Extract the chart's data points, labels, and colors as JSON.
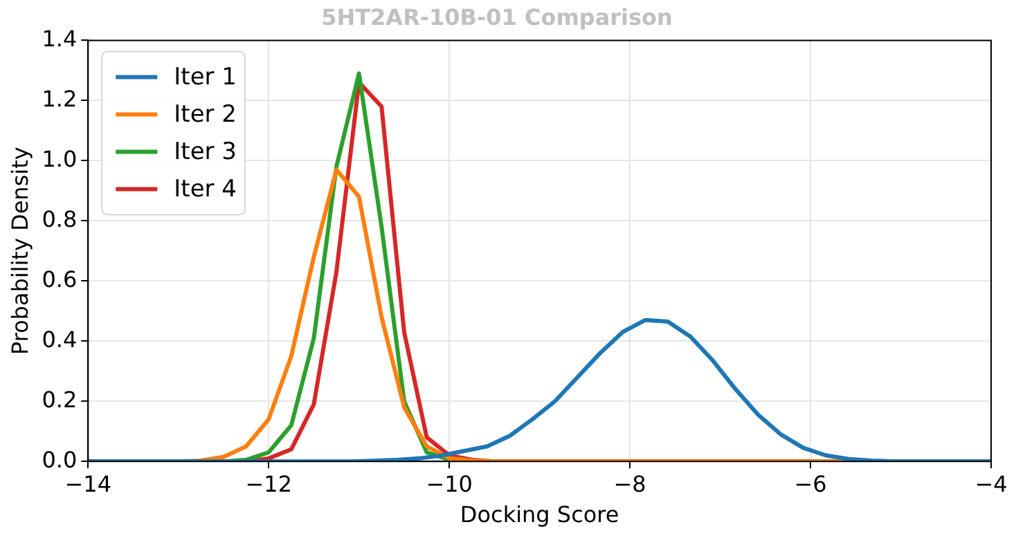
{
  "chart_data": {
    "type": "line",
    "title": "5HT2AR-10B-01 Comparison",
    "xlabel": "Docking Score",
    "ylabel": "Probability Density",
    "xlim": [
      -14,
      -4
    ],
    "xticks": [
      {
        "value": -14,
        "label": "−14"
      },
      {
        "value": -12,
        "label": "−12"
      },
      {
        "value": -10,
        "label": "−10"
      },
      {
        "value": -8,
        "label": "−8"
      },
      {
        "value": -6,
        "label": "−6"
      },
      {
        "value": -4,
        "label": "−4"
      }
    ],
    "ylim": [
      0,
      1.4
    ],
    "yticks": [
      {
        "value": 0,
        "label": "0.0"
      },
      {
        "value": 0.2,
        "label": "0.2"
      },
      {
        "value": 0.4,
        "label": "0.4"
      },
      {
        "value": 0.6,
        "label": "0.6"
      },
      {
        "value": 0.8,
        "label": "0.8"
      },
      {
        "value": 1,
        "label": "1.0"
      },
      {
        "value": 1.2,
        "label": "1.2"
      },
      {
        "value": 1.4,
        "label": "1.4"
      }
    ],
    "grid": true,
    "legend": "top left",
    "marker": "none",
    "line_style": "solid",
    "series": [
      {
        "name": "Iter 1",
        "color": "#1f77b4",
        "x": [
          -14,
          -11.08,
          -10.83,
          -10.58,
          -10.33,
          -10.08,
          -9.83,
          -9.58,
          -9.33,
          -9.08,
          -8.83,
          -8.58,
          -8.33,
          -8.08,
          -7.83,
          -7.58,
          -7.33,
          -7.08,
          -6.83,
          -6.58,
          -6.33,
          -6.08,
          -5.83,
          -5.58,
          -5.33,
          -5.08,
          -4
        ],
        "values": [
          0,
          0,
          0.002,
          0.005,
          0.01,
          0.02,
          0.035,
          0.05,
          0.085,
          0.14,
          0.2,
          0.28,
          0.36,
          0.43,
          0.47,
          0.465,
          0.415,
          0.335,
          0.24,
          0.155,
          0.09,
          0.045,
          0.02,
          0.008,
          0.003,
          0,
          0
        ]
      },
      {
        "name": "Iter 2",
        "color": "#ff7f0e",
        "x": [
          -14,
          -13,
          -12.75,
          -12.5,
          -12.25,
          -12,
          -11.75,
          -11.5,
          -11.25,
          -11,
          -10.75,
          -10.5,
          -10.25,
          -10,
          -9.75,
          -9.5,
          -4
        ],
        "values": [
          0,
          0,
          0.003,
          0.015,
          0.05,
          0.14,
          0.35,
          0.68,
          0.97,
          0.88,
          0.48,
          0.18,
          0.05,
          0.01,
          0.002,
          0,
          0
        ]
      },
      {
        "name": "Iter 3",
        "color": "#2ca02c",
        "x": [
          -14,
          -12.5,
          -12.25,
          -12,
          -11.75,
          -11.5,
          -11.25,
          -11,
          -10.75,
          -10.5,
          -10.25,
          -10,
          -9.75,
          -4
        ],
        "values": [
          0,
          0,
          0.005,
          0.03,
          0.12,
          0.41,
          0.98,
          1.29,
          0.78,
          0.2,
          0.03,
          0.005,
          0,
          0
        ]
      },
      {
        "name": "Iter 4",
        "color": "#d62728",
        "x": [
          -14,
          -12.25,
          -12,
          -11.75,
          -11.5,
          -11.25,
          -11,
          -10.75,
          -10.5,
          -10.25,
          -10,
          -9.75,
          -9.5,
          -4
        ],
        "values": [
          0,
          0,
          0.01,
          0.04,
          0.19,
          0.63,
          1.26,
          1.18,
          0.43,
          0.08,
          0.02,
          0.005,
          0,
          0
        ]
      }
    ]
  }
}
